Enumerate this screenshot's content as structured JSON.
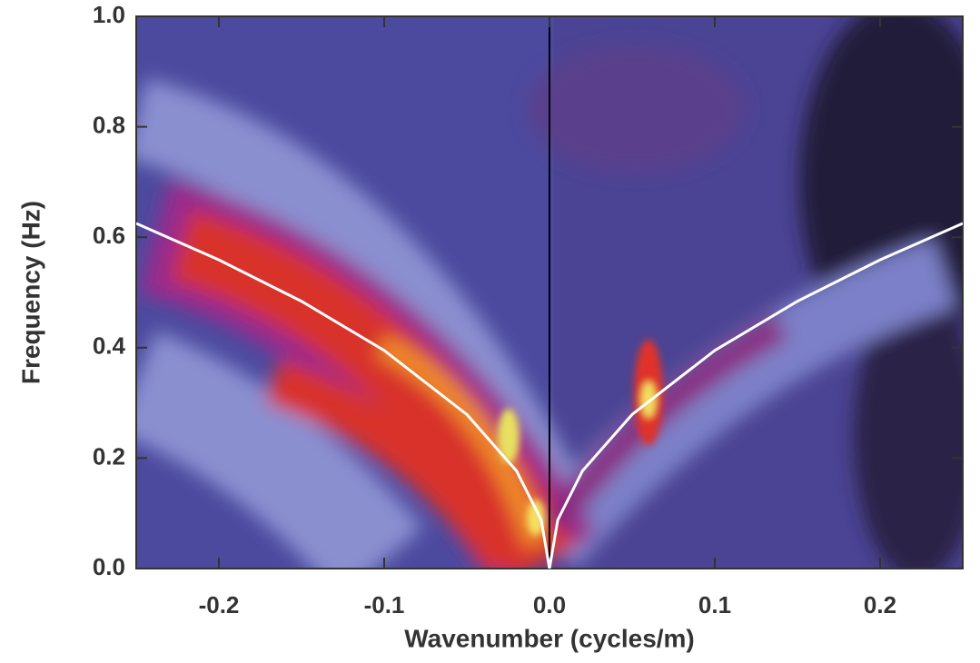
{
  "chart_data": {
    "type": "line",
    "xlabel": "Wavenumber (cycles/m)",
    "ylabel": "Frequency (Hz)",
    "x": [
      -0.25,
      -0.2,
      -0.15,
      -0.1,
      -0.05,
      -0.02,
      -0.005,
      0,
      0.005,
      0.02,
      0.05,
      0.1,
      0.15,
      0.2,
      0.25
    ],
    "values": [
      0.625,
      0.559,
      0.484,
      0.395,
      0.279,
      0.177,
      0.088,
      0,
      0.088,
      0.177,
      0.279,
      0.395,
      0.484,
      0.559,
      0.625
    ],
    "color": "#ffffff",
    "vline": 0,
    "xlim": [
      -0.25,
      0.25
    ],
    "ylim": [
      0,
      1
    ],
    "xticks": [
      -0.2,
      -0.1,
      {
        "value": 0,
        "label": "0.0"
      },
      0.1,
      0.2
    ],
    "yticks": [
      {
        "value": 0,
        "label": "0.0"
      },
      0.2,
      0.4,
      0.6,
      0.8,
      {
        "value": 1,
        "label": "1.0"
      }
    ]
  }
}
